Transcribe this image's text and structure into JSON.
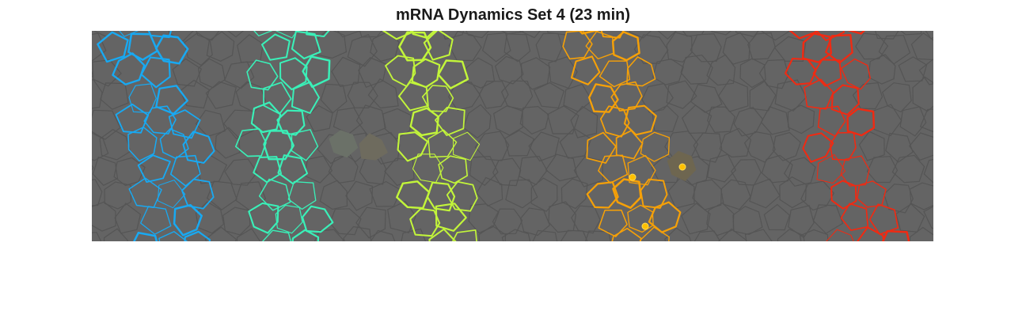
{
  "figure": {
    "title": "mRNA Dynamics Set 4 (23 min)"
  },
  "colors": {
    "background": "#646464",
    "cell_mesh": "#555555",
    "band_blue": "#18a9f2",
    "band_teal": "#3af0b8",
    "band_yellow_green": "#c2f53a",
    "band_orange": "#f5a008",
    "band_red": "#f02a12",
    "mrna_spot": "#ffc000"
  },
  "panel": {
    "content": "segmented-cell-field",
    "cell_bands": [
      {
        "name": "band-1",
        "color_key": "band_blue"
      },
      {
        "name": "band-2",
        "color_key": "band_teal"
      },
      {
        "name": "band-3",
        "color_key": "band_yellow_green"
      },
      {
        "name": "band-4",
        "color_key": "band_orange"
      },
      {
        "name": "band-5",
        "color_key": "band_red"
      }
    ],
    "mrna_spot_count": 3
  }
}
